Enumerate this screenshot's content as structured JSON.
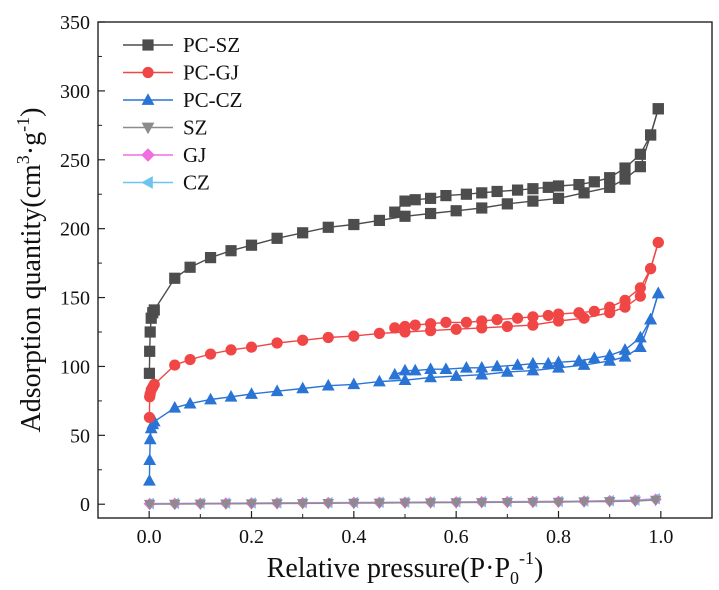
{
  "chart_data": {
    "type": "line",
    "title": "",
    "xlabel": "Relative pressure(P·P₀⁻¹)",
    "ylabel": "Adsorption quantity(cm³·g⁻¹)",
    "xlabel_parts": {
      "main": "Relative pressure(P·P",
      "sub": "0",
      "sup": "-1",
      "close": ")"
    },
    "ylabel_parts": {
      "main": "Adsorption quantity(cm",
      "sup1": "3",
      "mid": "·g",
      "sup2": "-1",
      "close": ")"
    },
    "xlim": [
      -0.1,
      1.1
    ],
    "ylim": [
      -10,
      350
    ],
    "x_ticks": [
      0.0,
      0.2,
      0.4,
      0.6,
      0.8,
      1.0
    ],
    "x_tick_labels": [
      "0.0",
      "0.2",
      "0.4",
      "0.6",
      "0.8",
      "1.0"
    ],
    "y_ticks": [
      0,
      50,
      100,
      150,
      200,
      250,
      300,
      350
    ],
    "y_tick_labels": [
      "0",
      "50",
      "100",
      "150",
      "200",
      "250",
      "300",
      "350"
    ],
    "grid": false,
    "legend_position": "top-left",
    "series": [
      {
        "name": "PC-SZ",
        "color": "#4d4d4d",
        "marker": "square",
        "adsorption": {
          "x": [
            0.0005,
            0.001,
            0.002,
            0.004,
            0.007,
            0.01,
            0.05,
            0.08,
            0.12,
            0.16,
            0.2,
            0.25,
            0.3,
            0.35,
            0.4,
            0.45,
            0.5,
            0.55,
            0.6,
            0.65,
            0.7,
            0.75,
            0.8,
            0.85,
            0.9,
            0.93,
            0.96,
            0.98,
            0.995
          ],
          "y": [
            95,
            111,
            125,
            135,
            139,
            141,
            164,
            172,
            179,
            184,
            188,
            193,
            197,
            201,
            203,
            206,
            209,
            211,
            213,
            215,
            218,
            220,
            222,
            226,
            230,
            236,
            245,
            268,
            287
          ]
        },
        "desorption": {
          "x": [
            0.995,
            0.98,
            0.96,
            0.93,
            0.9,
            0.87,
            0.84,
            0.8,
            0.78,
            0.75,
            0.72,
            0.68,
            0.65,
            0.62,
            0.58,
            0.55,
            0.52,
            0.5,
            0.48
          ],
          "y": [
            287,
            268,
            254,
            244,
            237,
            234,
            232,
            231,
            230,
            229,
            228,
            227,
            226,
            225,
            224,
            222,
            221,
            220,
            212
          ]
        }
      },
      {
        "name": "PC-GJ",
        "color": "#f04646",
        "marker": "circle",
        "adsorption": {
          "x": [
            0.0005,
            0.001,
            0.002,
            0.004,
            0.007,
            0.01,
            0.05,
            0.08,
            0.12,
            0.16,
            0.2,
            0.25,
            0.3,
            0.35,
            0.4,
            0.45,
            0.5,
            0.55,
            0.6,
            0.65,
            0.7,
            0.75,
            0.8,
            0.85,
            0.9,
            0.93,
            0.96,
            0.98,
            0.995
          ],
          "y": [
            63,
            78,
            80,
            83,
            85,
            87,
            101,
            105,
            109,
            112,
            114,
            117,
            119,
            121,
            122,
            124,
            125,
            126,
            127,
            128,
            129,
            130,
            133,
            135,
            139,
            143,
            151,
            171,
            190
          ]
        },
        "desorption": {
          "x": [
            0.995,
            0.98,
            0.96,
            0.93,
            0.9,
            0.87,
            0.84,
            0.8,
            0.78,
            0.75,
            0.72,
            0.68,
            0.65,
            0.62,
            0.58,
            0.55,
            0.52,
            0.5,
            0.48
          ],
          "y": [
            190,
            171,
            157,
            148,
            143,
            140,
            139,
            138,
            137,
            136,
            135,
            134,
            133,
            132,
            132,
            131,
            130,
            129,
            128
          ]
        }
      },
      {
        "name": "PC-CZ",
        "color": "#2a74d6",
        "marker": "triangle-up",
        "adsorption": {
          "x": [
            0.0005,
            0.001,
            0.002,
            0.004,
            0.007,
            0.01,
            0.05,
            0.08,
            0.12,
            0.16,
            0.2,
            0.25,
            0.3,
            0.35,
            0.4,
            0.45,
            0.5,
            0.55,
            0.6,
            0.65,
            0.7,
            0.75,
            0.8,
            0.85,
            0.9,
            0.93,
            0.96,
            0.98,
            0.995
          ],
          "y": [
            17,
            32,
            47,
            55,
            58,
            60,
            70,
            73,
            76,
            78,
            80,
            82,
            84,
            86,
            87,
            89,
            90,
            92,
            93,
            94,
            96,
            97,
            99,
            101,
            104,
            107,
            114,
            134,
            153
          ]
        },
        "desorption": {
          "x": [
            0.995,
            0.98,
            0.96,
            0.93,
            0.9,
            0.87,
            0.84,
            0.8,
            0.78,
            0.75,
            0.72,
            0.68,
            0.65,
            0.62,
            0.58,
            0.55,
            0.52,
            0.5,
            0.48
          ],
          "y": [
            153,
            134,
            121,
            112,
            108,
            106,
            104,
            103,
            102,
            102,
            101,
            100,
            99,
            99,
            98,
            98,
            97,
            97,
            94
          ]
        }
      },
      {
        "name": "SZ",
        "color": "#8c8c8c",
        "marker": "triangle-down",
        "adsorption": {
          "x": [
            0.001,
            0.05,
            0.1,
            0.15,
            0.2,
            0.25,
            0.3,
            0.35,
            0.4,
            0.45,
            0.5,
            0.55,
            0.6,
            0.65,
            0.7,
            0.75,
            0.8,
            0.85,
            0.9,
            0.95,
            0.99
          ],
          "y": [
            0,
            0.1,
            0.2,
            0.3,
            0.4,
            0.5,
            0.6,
            0.7,
            0.8,
            0.9,
            1.0,
            1.1,
            1.2,
            1.3,
            1.4,
            1.5,
            1.6,
            1.8,
            2.0,
            2.3,
            3.0
          ]
        }
      },
      {
        "name": "GJ",
        "color": "#f06ee0",
        "marker": "diamond",
        "adsorption": {
          "x": [
            0.001,
            0.05,
            0.1,
            0.15,
            0.2,
            0.25,
            0.3,
            0.35,
            0.4,
            0.45,
            0.5,
            0.55,
            0.6,
            0.65,
            0.7,
            0.75,
            0.8,
            0.85,
            0.9,
            0.95,
            0.99
          ],
          "y": [
            0.3,
            0.4,
            0.5,
            0.6,
            0.7,
            0.8,
            0.9,
            1.0,
            1.1,
            1.2,
            1.3,
            1.4,
            1.5,
            1.6,
            1.7,
            1.8,
            1.9,
            2.1,
            2.4,
            2.8,
            3.5
          ]
        }
      },
      {
        "name": "CZ",
        "color": "#6ec4f0",
        "marker": "triangle-left",
        "adsorption": {
          "x": [
            0.001,
            0.05,
            0.1,
            0.15,
            0.2,
            0.25,
            0.3,
            0.35,
            0.4,
            0.45,
            0.5,
            0.55,
            0.6,
            0.65,
            0.7,
            0.75,
            0.8,
            0.85,
            0.9,
            0.95,
            0.99
          ],
          "y": [
            0.5,
            0.6,
            0.7,
            0.8,
            0.9,
            1.0,
            1.1,
            1.2,
            1.3,
            1.4,
            1.5,
            1.6,
            1.7,
            1.8,
            1.9,
            2.0,
            2.1,
            2.3,
            2.6,
            3.0,
            4.0
          ]
        }
      }
    ]
  }
}
